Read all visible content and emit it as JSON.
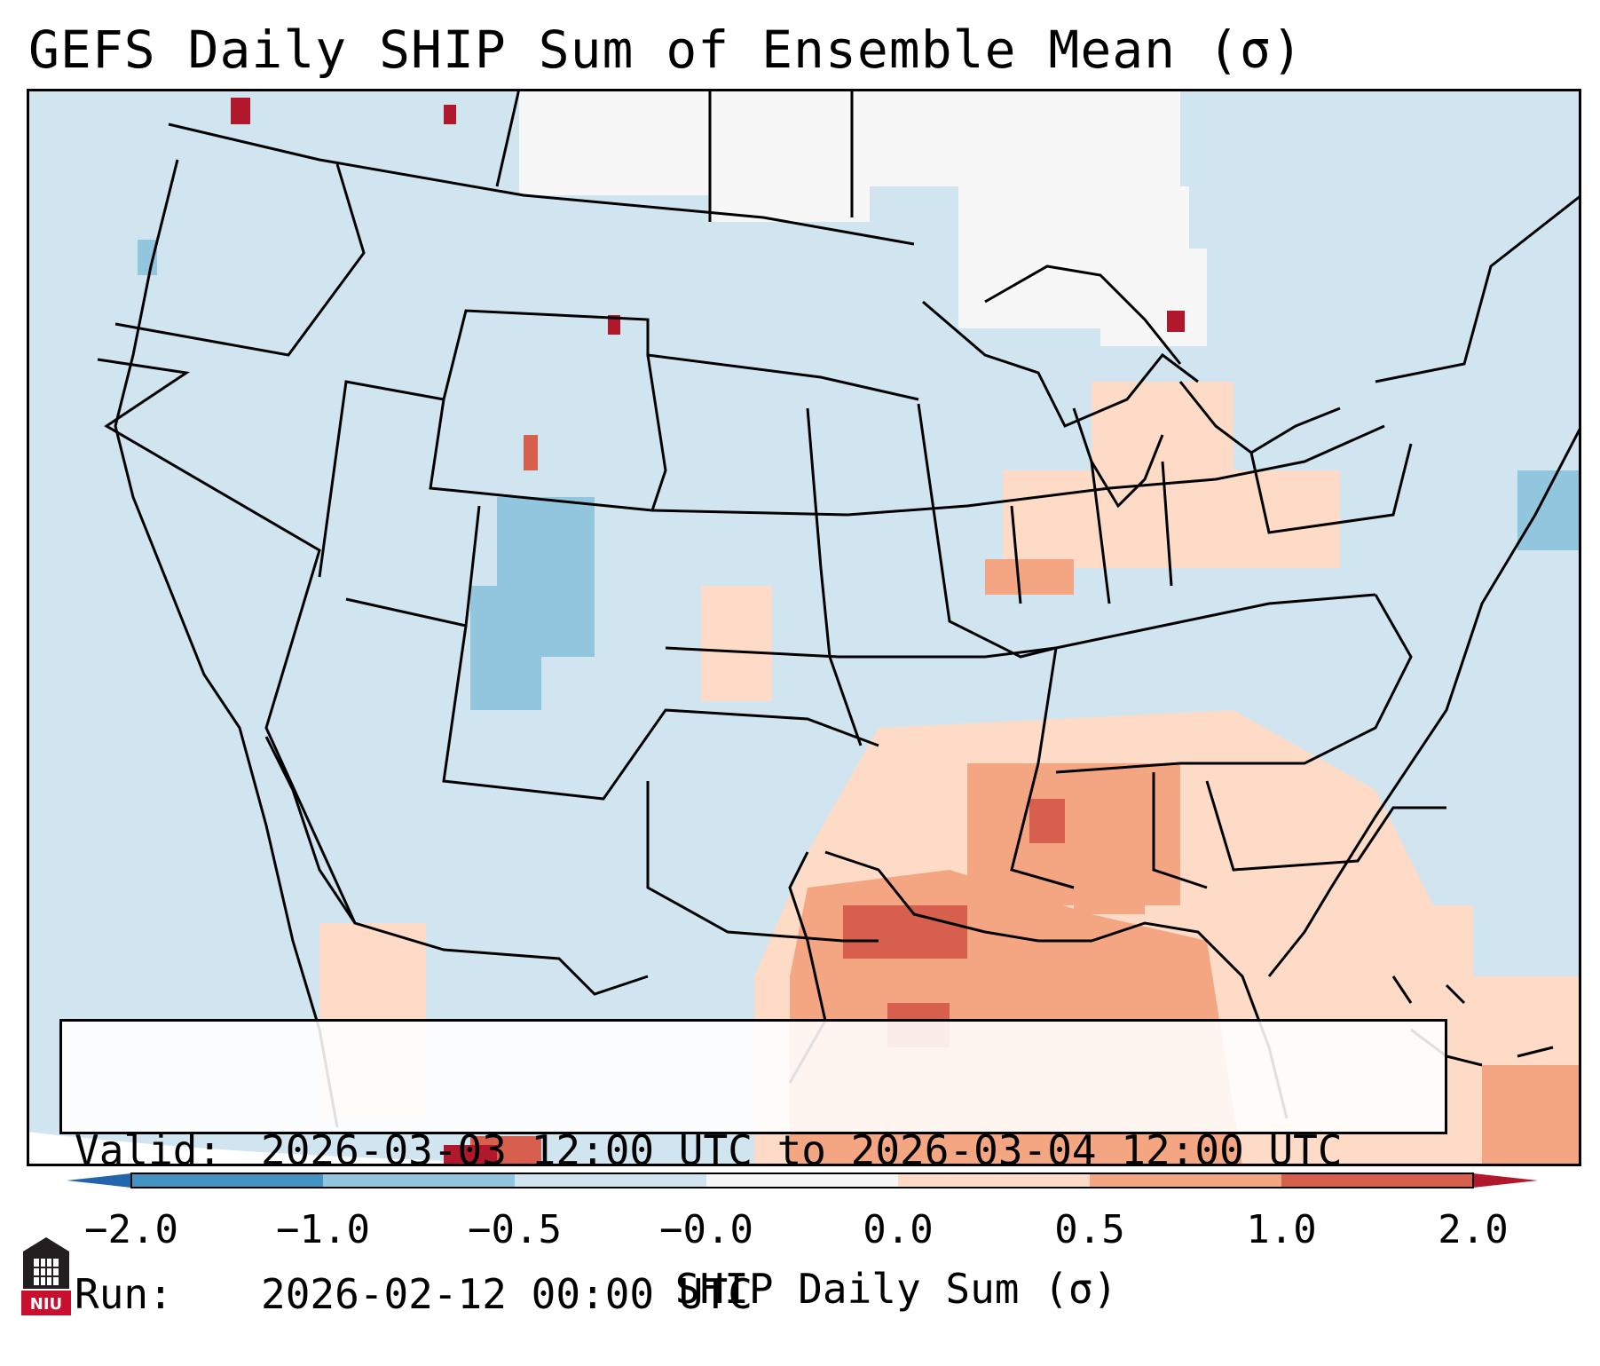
{
  "title": "GEFS Daily SHIP Sum of Ensemble Mean (σ)",
  "info": {
    "valid_label": "Valid:",
    "valid_value": "2026-03-03 12:00 UTC to 2026-03-04 12:00 UTC",
    "run_label": "Run:",
    "run_value": "2026-02-12 00:00 UTC"
  },
  "colorbar": {
    "label": "SHIP Daily Sum (σ)",
    "ticks": [
      "−2.0",
      "−1.0",
      "−0.5",
      "−0.0",
      "0.0",
      "0.5",
      "1.0",
      "2.0"
    ],
    "bins": [
      {
        "range": "-2.0 to -1.0",
        "color": "#4393c3"
      },
      {
        "range": "-1.0 to -0.5",
        "color": "#92c5de"
      },
      {
        "range": "-0.5 to -0.0",
        "color": "#d1e5f0"
      },
      {
        "range": "-0.0 to 0.0",
        "color": "#f7f7f7"
      },
      {
        "range": "0.0 to 0.5",
        "color": "#fddbc7"
      },
      {
        "range": "0.5 to 1.0",
        "color": "#f4a582"
      },
      {
        "range": "1.0 to 2.0",
        "color": "#d6604d"
      }
    ],
    "under_color": "#2166ac",
    "over_color": "#b2182b"
  },
  "logo": {
    "text": "NIU",
    "icon": "niu-logo-icon"
  },
  "map": {
    "background_color": "#d1e5f0",
    "region": "Continental United States, northern Mexico, Gulf of Mexico, Caribbean"
  }
}
